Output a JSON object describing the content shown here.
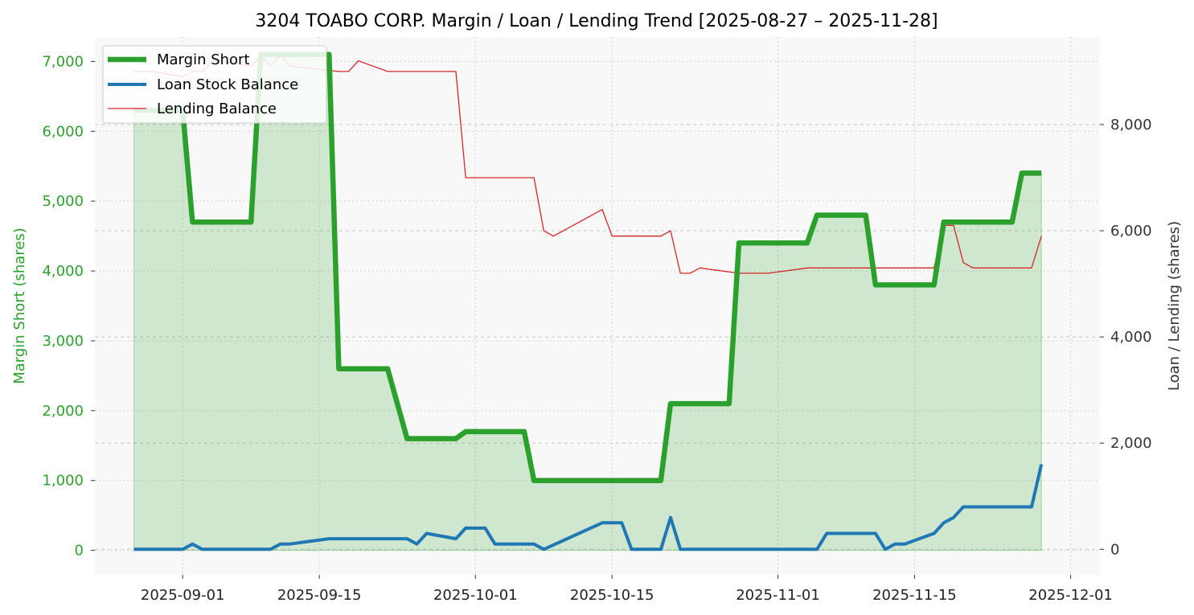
{
  "chart_data": {
    "type": "line",
    "title": "3204 TOABO CORP. Margin / Loan / Lending Trend [2025-08-27 – 2025-11-28]",
    "ylabel": "Margin Short (shares)",
    "y2label": "Loan / Lending (shares)",
    "ylim": [
      -350,
      7350
    ],
    "y2lim": [
      -480,
      9650
    ],
    "yticks": [
      0,
      1000,
      2000,
      3000,
      4000,
      5000,
      6000,
      7000
    ],
    "ytick_labels": [
      "0",
      "1,000",
      "2,000",
      "3,000",
      "4,000",
      "5,000",
      "6,000",
      "7,000"
    ],
    "y2ticks": [
      0,
      2000,
      4000,
      6000,
      8000
    ],
    "y2tick_labels": [
      "0",
      "2,000",
      "4,000",
      "6,000",
      "8,000"
    ],
    "xlim": [
      "2025-08-23",
      "2025-12-04"
    ],
    "xticks": [
      "2025-09-01",
      "2025-09-15",
      "2025-10-01",
      "2025-10-15",
      "2025-11-01",
      "2025-11-15",
      "2025-12-01"
    ],
    "xtick_labels": [
      "2025-09-01",
      "2025-09-15",
      "2025-10-01",
      "2025-10-15",
      "2025-11-01",
      "2025-11-15",
      "2025-12-01"
    ],
    "grid": true,
    "legend_position": "top-left",
    "colors": {
      "margin": "#2ca02c",
      "loan": "#1f77b4",
      "lending": "#d62728",
      "plot_bg": "#f8f8f8"
    },
    "series": [
      {
        "name": "Margin Short",
        "axis": "left",
        "color": "#2ca02c",
        "fill": true,
        "x": [
          "2025-08-27",
          "2025-08-28",
          "2025-08-29",
          "2025-09-01",
          "2025-09-02",
          "2025-09-03",
          "2025-09-04",
          "2025-09-05",
          "2025-09-08",
          "2025-09-09",
          "2025-09-10",
          "2025-09-11",
          "2025-09-12",
          "2025-09-16",
          "2025-09-17",
          "2025-09-18",
          "2025-09-19",
          "2025-09-22",
          "2025-09-24",
          "2025-09-25",
          "2025-09-26",
          "2025-09-29",
          "2025-09-30",
          "2025-10-01",
          "2025-10-02",
          "2025-10-03",
          "2025-10-06",
          "2025-10-07",
          "2025-10-08",
          "2025-10-09",
          "2025-10-10",
          "2025-10-14",
          "2025-10-15",
          "2025-10-16",
          "2025-10-17",
          "2025-10-20",
          "2025-10-21",
          "2025-10-22",
          "2025-10-23",
          "2025-10-24",
          "2025-10-27",
          "2025-10-28",
          "2025-10-29",
          "2025-10-30",
          "2025-10-31",
          "2025-11-04",
          "2025-11-05",
          "2025-11-06",
          "2025-11-07",
          "2025-11-10",
          "2025-11-11",
          "2025-11-12",
          "2025-11-13",
          "2025-11-14",
          "2025-11-17",
          "2025-11-18",
          "2025-11-19",
          "2025-11-20",
          "2025-11-21",
          "2025-11-25",
          "2025-11-26",
          "2025-11-27",
          "2025-11-28"
        ],
        "values": [
          6300,
          6300,
          6300,
          6300,
          4700,
          4700,
          4700,
          4700,
          4700,
          7100,
          7100,
          7100,
          7100,
          7100,
          2600,
          2600,
          2600,
          2600,
          1600,
          1600,
          1600,
          1600,
          1700,
          1700,
          1700,
          1700,
          1700,
          1000,
          1000,
          1000,
          1000,
          1000,
          1000,
          1000,
          1000,
          1000,
          2100,
          2100,
          2100,
          2100,
          2100,
          4400,
          4400,
          4400,
          4400,
          4400,
          4800,
          4800,
          4800,
          4800,
          3800,
          3800,
          3800,
          3800,
          3800,
          4700,
          4700,
          4700,
          4700,
          4700,
          5400,
          5400,
          5400
        ]
      },
      {
        "name": "Loan Stock Balance",
        "axis": "right",
        "color": "#1f77b4",
        "x": [
          "2025-08-27",
          "2025-09-01",
          "2025-09-02",
          "2025-09-03",
          "2025-09-04",
          "2025-09-05",
          "2025-09-08",
          "2025-09-09",
          "2025-09-10",
          "2025-09-11",
          "2025-09-12",
          "2025-09-16",
          "2025-09-17",
          "2025-09-18",
          "2025-09-19",
          "2025-09-22",
          "2025-09-24",
          "2025-09-25",
          "2025-09-26",
          "2025-09-29",
          "2025-09-30",
          "2025-10-01",
          "2025-10-02",
          "2025-10-03",
          "2025-10-06",
          "2025-10-07",
          "2025-10-08",
          "2025-10-14",
          "2025-10-16",
          "2025-10-17",
          "2025-10-20",
          "2025-10-21",
          "2025-10-22",
          "2025-10-23",
          "2025-10-31",
          "2025-11-04",
          "2025-11-05",
          "2025-11-06",
          "2025-11-11",
          "2025-11-12",
          "2025-11-13",
          "2025-11-14",
          "2025-11-17",
          "2025-11-18",
          "2025-11-19",
          "2025-11-20",
          "2025-11-21",
          "2025-11-27",
          "2025-11-28"
        ],
        "values": [
          0,
          0,
          100,
          0,
          0,
          0,
          0,
          0,
          0,
          100,
          100,
          200,
          200,
          200,
          200,
          200,
          200,
          100,
          300,
          200,
          400,
          400,
          400,
          100,
          100,
          100,
          0,
          500,
          500,
          0,
          0,
          600,
          0,
          0,
          0,
          0,
          0,
          300,
          300,
          0,
          100,
          100,
          300,
          500,
          600,
          800,
          800,
          800,
          1600
        ]
      },
      {
        "name": "Lending Balance",
        "axis": "right",
        "color": "#d62728",
        "thin": true,
        "x": [
          "2025-08-27",
          "2025-08-29",
          "2025-09-01",
          "2025-09-02",
          "2025-09-03",
          "2025-09-04",
          "2025-09-05",
          "2025-09-08",
          "2025-09-09",
          "2025-09-10",
          "2025-09-11",
          "2025-09-12",
          "2025-09-17",
          "2025-09-18",
          "2025-09-19",
          "2025-09-22",
          "2025-09-29",
          "2025-09-30",
          "2025-10-07",
          "2025-10-08",
          "2025-10-09",
          "2025-10-14",
          "2025-10-15",
          "2025-10-20",
          "2025-10-21",
          "2025-10-22",
          "2025-10-23",
          "2025-10-24",
          "2025-10-28",
          "2025-10-31",
          "2025-11-04",
          "2025-11-17",
          "2025-11-18",
          "2025-11-19",
          "2025-11-20",
          "2025-11-21",
          "2025-11-27",
          "2025-11-28"
        ],
        "values": [
          9000,
          9000,
          8900,
          9000,
          9000,
          9200,
          9200,
          9100,
          9300,
          9100,
          9300,
          9100,
          9000,
          9000,
          9200,
          9000,
          9000,
          7000,
          7000,
          6000,
          5900,
          6400,
          5900,
          5900,
          6000,
          5200,
          5200,
          5300,
          5200,
          5200,
          5300,
          5300,
          6100,
          6100,
          5400,
          5300,
          5300,
          5900
        ]
      }
    ]
  }
}
